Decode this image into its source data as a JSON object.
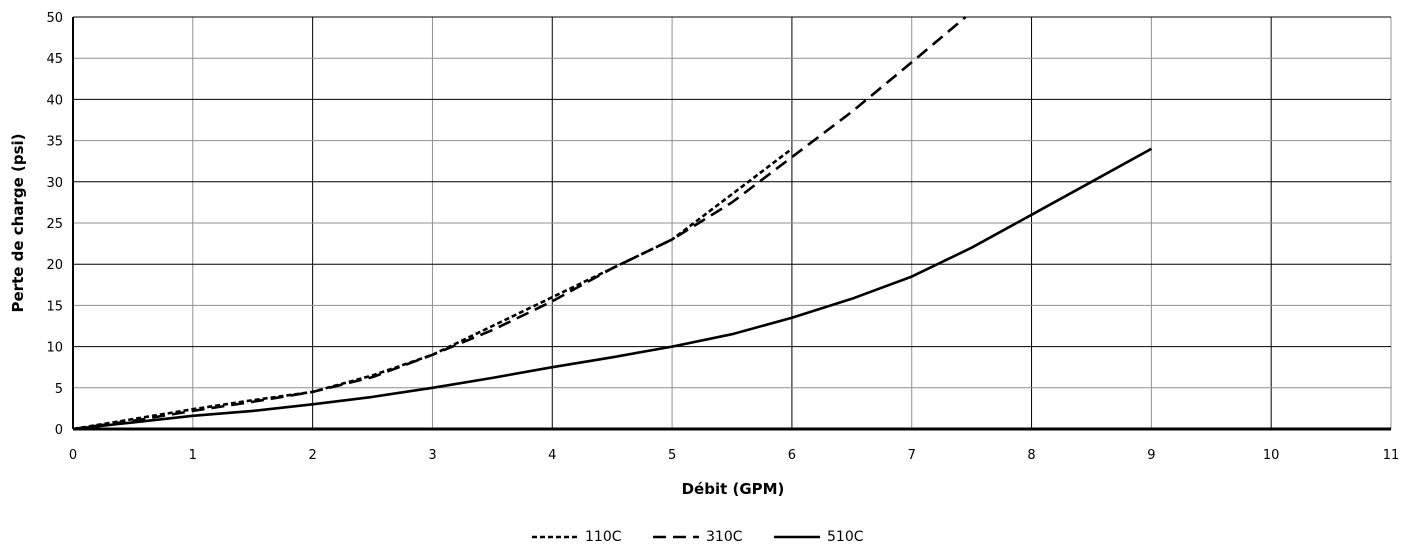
{
  "chart_data": {
    "type": "line",
    "title": "",
    "xlabel": "Débit (GPM)",
    "ylabel": "Perte de charge (psi)",
    "xlim": [
      0,
      11
    ],
    "ylim": [
      0,
      50
    ],
    "x_ticks": [
      "0",
      "1",
      "2",
      "3",
      "4",
      "5",
      "6",
      "7",
      "8",
      "9",
      "10",
      "11"
    ],
    "y_ticks": [
      "0",
      "5",
      "10",
      "15",
      "20",
      "25",
      "30",
      "35",
      "40",
      "45",
      "50"
    ],
    "grid": true,
    "legend_position": "bottom",
    "series": [
      {
        "name": "110C",
        "style": "short-dash",
        "color": "#000000",
        "x": [
          0,
          0.5,
          1,
          1.5,
          2,
          2.5,
          3,
          3.5,
          4,
          4.5,
          5,
          5.5,
          6
        ],
        "y": [
          0,
          1.2,
          2.4,
          3.5,
          4.5,
          6.5,
          9,
          12.5,
          16,
          19.5,
          23,
          28.5,
          34
        ]
      },
      {
        "name": "310C",
        "style": "long-dash",
        "color": "#000000",
        "x": [
          0,
          0.5,
          1,
          1.5,
          2,
          2.5,
          3,
          3.5,
          4,
          4.5,
          5,
          5.5,
          6,
          6.5,
          7,
          7.45
        ],
        "y": [
          0,
          1,
          2.2,
          3.3,
          4.5,
          6.3,
          9,
          12,
          15.5,
          19.5,
          23,
          27.5,
          33,
          38.5,
          44.5,
          50
        ]
      },
      {
        "name": "510C",
        "style": "solid",
        "color": "#000000",
        "x": [
          0,
          0.5,
          1,
          1.5,
          2,
          2.5,
          3,
          3.5,
          4,
          4.5,
          5,
          5.5,
          6,
          6.5,
          7,
          7.5,
          8,
          8.5,
          9
        ],
        "y": [
          0,
          0.8,
          1.6,
          2.2,
          3,
          3.9,
          5,
          6.2,
          7.5,
          8.7,
          10,
          11.5,
          13.5,
          15.8,
          18.5,
          22,
          26,
          30,
          34
        ]
      }
    ]
  }
}
